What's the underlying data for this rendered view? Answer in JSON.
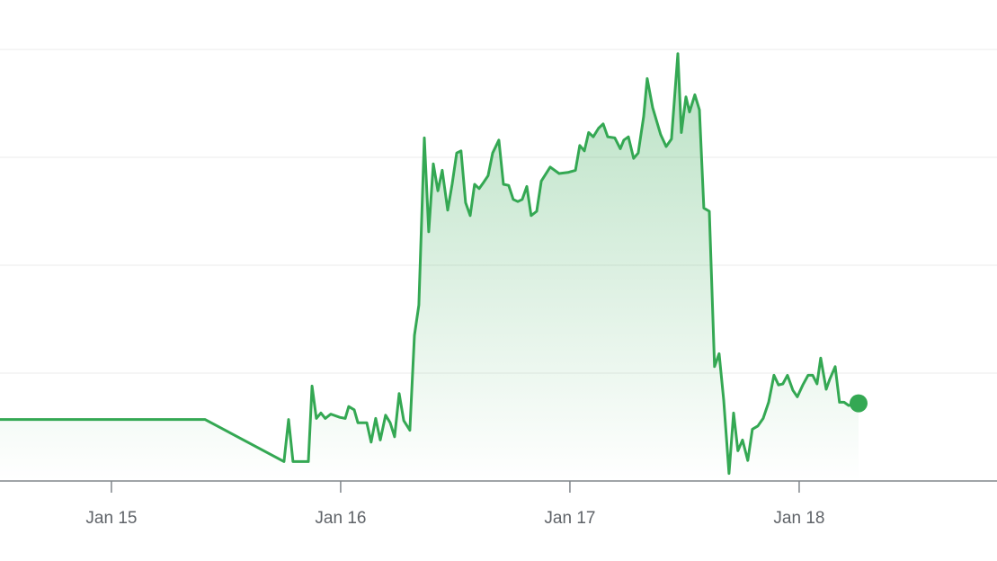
{
  "chart_data": {
    "type": "area-line",
    "color": "#34a853",
    "grid": true,
    "ytick_labels": false,
    "xlim": [
      14.514,
      18.863
    ],
    "ylim": [
      0,
      4
    ],
    "yticks": [
      0,
      1,
      2,
      3,
      4
    ],
    "xticks": [
      {
        "value": 15,
        "label": "Jan 15"
      },
      {
        "value": 16,
        "label": "Jan 16"
      },
      {
        "value": 17,
        "label": "Jan 17"
      },
      {
        "value": 18,
        "label": "Jan 18"
      }
    ],
    "x": [
      14.514,
      15.408,
      15.753,
      15.773,
      15.792,
      15.859,
      15.875,
      15.894,
      15.914,
      15.933,
      15.957,
      15.996,
      16.02,
      16.035,
      16.059,
      16.075,
      16.114,
      16.133,
      16.153,
      16.173,
      16.196,
      16.216,
      16.235,
      16.255,
      16.275,
      16.302,
      16.322,
      16.341,
      16.365,
      16.384,
      16.404,
      16.424,
      16.443,
      16.467,
      16.486,
      16.506,
      16.525,
      16.545,
      16.565,
      16.584,
      16.604,
      16.624,
      16.643,
      16.663,
      16.69,
      16.71,
      16.733,
      16.753,
      16.773,
      16.792,
      16.812,
      16.831,
      16.855,
      16.875,
      16.914,
      16.953,
      16.992,
      17.024,
      17.043,
      17.063,
      17.082,
      17.102,
      17.125,
      17.145,
      17.165,
      17.196,
      17.22,
      17.235,
      17.255,
      17.278,
      17.298,
      17.322,
      17.337,
      17.361,
      17.396,
      17.42,
      17.443,
      17.471,
      17.486,
      17.506,
      17.522,
      17.545,
      17.565,
      17.584,
      17.608,
      17.631,
      17.651,
      17.671,
      17.694,
      17.714,
      17.733,
      17.753,
      17.776,
      17.796,
      17.82,
      17.843,
      17.867,
      17.89,
      17.91,
      17.929,
      17.949,
      17.973,
      17.992,
      18.016,
      18.039,
      18.059,
      18.078,
      18.094,
      18.118,
      18.133,
      18.157,
      18.176,
      18.196,
      18.216,
      18.259
    ],
    "values": [
      0.57,
      0.57,
      0.18,
      0.57,
      0.18,
      0.18,
      0.88,
      0.58,
      0.63,
      0.58,
      0.62,
      0.59,
      0.58,
      0.69,
      0.66,
      0.54,
      0.54,
      0.36,
      0.58,
      0.38,
      0.61,
      0.54,
      0.41,
      0.81,
      0.56,
      0.47,
      1.35,
      1.63,
      3.18,
      2.31,
      2.94,
      2.69,
      2.88,
      2.51,
      2.75,
      3.04,
      3.06,
      2.58,
      2.46,
      2.75,
      2.71,
      2.77,
      2.83,
      3.04,
      3.16,
      2.75,
      2.74,
      2.61,
      2.59,
      2.61,
      2.73,
      2.46,
      2.5,
      2.78,
      2.91,
      2.85,
      2.86,
      2.88,
      3.11,
      3.06,
      3.23,
      3.19,
      3.27,
      3.31,
      3.19,
      3.18,
      3.08,
      3.16,
      3.19,
      2.99,
      3.04,
      3.38,
      3.73,
      3.46,
      3.21,
      3.1,
      3.17,
      3.96,
      3.23,
      3.56,
      3.42,
      3.58,
      3.44,
      2.53,
      2.5,
      1.06,
      1.18,
      0.75,
      0.07,
      0.63,
      0.28,
      0.38,
      0.19,
      0.48,
      0.51,
      0.58,
      0.73,
      0.98,
      0.89,
      0.9,
      0.98,
      0.84,
      0.78,
      0.89,
      0.98,
      0.98,
      0.9,
      1.14,
      0.85,
      0.94,
      1.06,
      0.73,
      0.73,
      0.7,
      0.72
    ]
  }
}
